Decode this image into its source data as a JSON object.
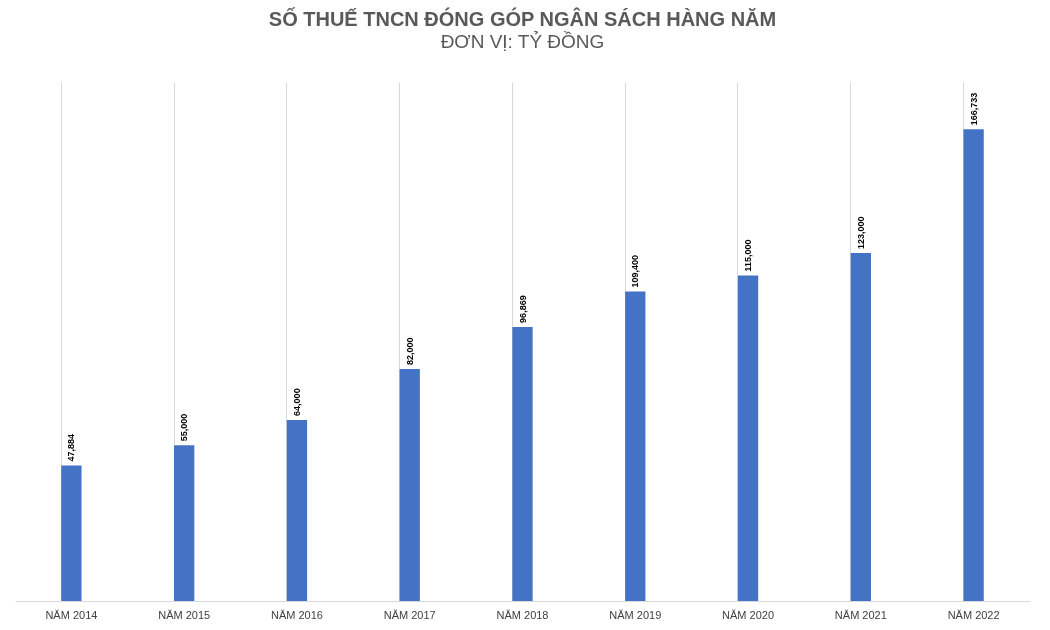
{
  "chart_data": {
    "type": "bar",
    "title": "SỐ THUẾ TNCN ĐÓNG GÓP NGÂN SÁCH HÀNG NĂM",
    "subtitle": "ĐƠN VỊ: TỶ ĐỒNG",
    "categories": [
      "NĂM 2014",
      "NĂM 2015",
      "NĂM 2016",
      "NĂM 2017",
      "NĂM 2018",
      "NĂM 2019",
      "NĂM 2020",
      "NĂM 2021",
      "NĂM 2022"
    ],
    "values": [
      47884,
      55000,
      64000,
      82000,
      96869,
      109400,
      115000,
      123000,
      166733
    ],
    "value_labels": [
      "47,884",
      "55,000",
      "64,000",
      "82,000",
      "96,869",
      "109,400",
      "115,000",
      "123,000",
      "166,733"
    ],
    "color": "#4472c4",
    "grid": "x",
    "tick_labels": "x"
  }
}
